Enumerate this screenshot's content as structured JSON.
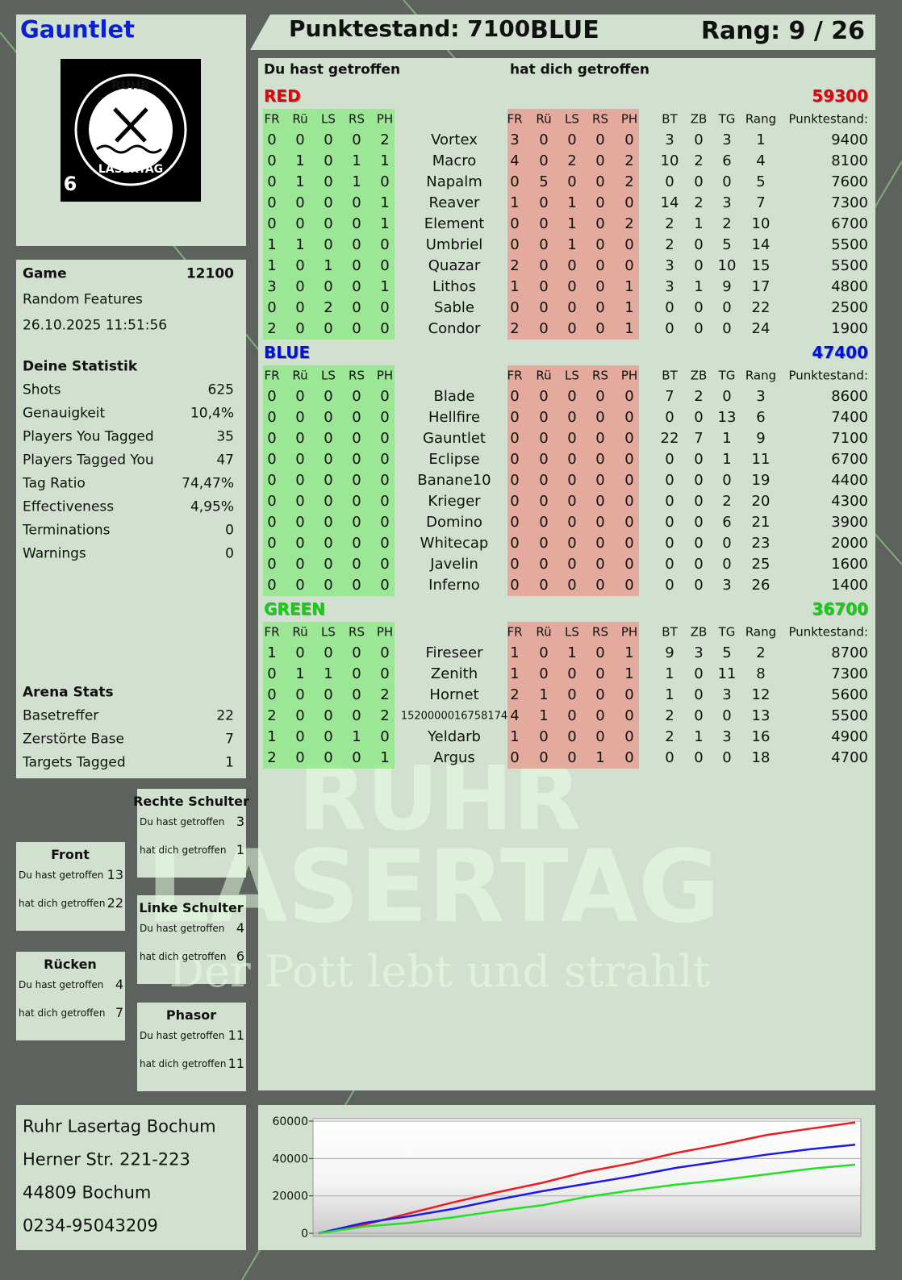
{
  "header": {
    "player": "Gauntlet",
    "score_label": "Punktestand: 7100",
    "team": "BLUE",
    "rank_label": "Rang: 9 / 26"
  },
  "logo": {
    "top": "RUHR",
    "bottom": "LASERTAG",
    "badge": "6"
  },
  "game": {
    "label": "Game",
    "id": 12100,
    "mode": "Random Features",
    "datetime": "26.10.2025 11:51:56"
  },
  "stats": {
    "title": "Deine Statistik",
    "rows": [
      [
        "Shots",
        625
      ],
      [
        "Genauigkeit",
        "10,4%"
      ],
      [
        "Players You Tagged",
        35
      ],
      [
        "Players Tagged You",
        47
      ],
      [
        "Tag Ratio",
        "74,47%"
      ],
      [
        "Effectiveness",
        "4,95%"
      ],
      [
        "Terminations",
        0
      ],
      [
        "Warnings",
        0
      ]
    ]
  },
  "arena": {
    "title": "Arena Stats",
    "rows": [
      [
        "Basetreffer",
        22
      ],
      [
        "Zerstörte Base",
        7
      ],
      [
        "Targets Tagged",
        1
      ]
    ]
  },
  "zones": {
    "hit_label": "Du hast getroffen",
    "got_label": "hat dich getroffen",
    "items": [
      {
        "name": "Rechte Schulter",
        "hit": 3,
        "got": 1
      },
      {
        "name": "Front",
        "hit": 13,
        "got": 22
      },
      {
        "name": "Linke Schulter",
        "hit": 4,
        "got": 6
      },
      {
        "name": "Rücken",
        "hit": 4,
        "got": 7
      },
      {
        "name": "Phasor",
        "hit": 11,
        "got": 11
      }
    ]
  },
  "table": {
    "hit_header": "Du hast getroffen",
    "got_header": "hat dich getroffen",
    "hit_columns": [
      "FR",
      "Rü",
      "LS",
      "RS",
      "PH"
    ],
    "stat_columns": [
      "BT",
      "ZB",
      "TG",
      "Rang",
      "Punktestand:"
    ],
    "teams": [
      {
        "name": "RED",
        "color": "#e4000c",
        "score": 59300,
        "players": [
          {
            "name": "Vortex",
            "hit": [
              0,
              0,
              0,
              0,
              2
            ],
            "got": [
              3,
              0,
              0,
              0,
              0
            ],
            "bt": 3,
            "zb": 0,
            "tg": 3,
            "rank": 1,
            "score": 9400
          },
          {
            "name": "Macro",
            "hit": [
              0,
              1,
              0,
              1,
              1
            ],
            "got": [
              4,
              0,
              2,
              0,
              2
            ],
            "bt": 10,
            "zb": 2,
            "tg": 6,
            "rank": 4,
            "score": 8100
          },
          {
            "name": "Napalm",
            "hit": [
              0,
              1,
              0,
              1,
              0
            ],
            "got": [
              0,
              5,
              0,
              0,
              2
            ],
            "bt": 0,
            "zb": 0,
            "tg": 0,
            "rank": 5,
            "score": 7600
          },
          {
            "name": "Reaver",
            "hit": [
              0,
              0,
              0,
              0,
              1
            ],
            "got": [
              1,
              0,
              1,
              0,
              0
            ],
            "bt": 14,
            "zb": 2,
            "tg": 3,
            "rank": 7,
            "score": 7300
          },
          {
            "name": "Element",
            "hit": [
              0,
              0,
              0,
              0,
              1
            ],
            "got": [
              0,
              0,
              1,
              0,
              2
            ],
            "bt": 2,
            "zb": 1,
            "tg": 2,
            "rank": 10,
            "score": 6700
          },
          {
            "name": "Umbriel",
            "hit": [
              1,
              1,
              0,
              0,
              0
            ],
            "got": [
              0,
              0,
              1,
              0,
              0
            ],
            "bt": 2,
            "zb": 0,
            "tg": 5,
            "rank": 14,
            "score": 5500
          },
          {
            "name": "Quazar",
            "hit": [
              1,
              0,
              1,
              0,
              0
            ],
            "got": [
              2,
              0,
              0,
              0,
              0
            ],
            "bt": 3,
            "zb": 0,
            "tg": 10,
            "rank": 15,
            "score": 5500
          },
          {
            "name": "Lithos",
            "hit": [
              3,
              0,
              0,
              0,
              1
            ],
            "got": [
              1,
              0,
              0,
              0,
              1
            ],
            "bt": 3,
            "zb": 1,
            "tg": 9,
            "rank": 17,
            "score": 4800
          },
          {
            "name": "Sable",
            "hit": [
              0,
              0,
              2,
              0,
              0
            ],
            "got": [
              0,
              0,
              0,
              0,
              1
            ],
            "bt": 0,
            "zb": 0,
            "tg": 0,
            "rank": 22,
            "score": 2500
          },
          {
            "name": "Condor",
            "hit": [
              2,
              0,
              0,
              0,
              0
            ],
            "got": [
              2,
              0,
              0,
              0,
              1
            ],
            "bt": 0,
            "zb": 0,
            "tg": 0,
            "rank": 24,
            "score": 1900
          }
        ]
      },
      {
        "name": "BLUE",
        "color": "#0010e0",
        "score": 47400,
        "players": [
          {
            "name": "Blade",
            "hit": [
              0,
              0,
              0,
              0,
              0
            ],
            "got": [
              0,
              0,
              0,
              0,
              0
            ],
            "bt": 7,
            "zb": 2,
            "tg": 0,
            "rank": 3,
            "score": 8600
          },
          {
            "name": "Hellfire",
            "hit": [
              0,
              0,
              0,
              0,
              0
            ],
            "got": [
              0,
              0,
              0,
              0,
              0
            ],
            "bt": 0,
            "zb": 0,
            "tg": 13,
            "rank": 6,
            "score": 7400
          },
          {
            "name": "Gauntlet",
            "hit": [
              0,
              0,
              0,
              0,
              0
            ],
            "got": [
              0,
              0,
              0,
              0,
              0
            ],
            "bt": 22,
            "zb": 7,
            "tg": 1,
            "rank": 9,
            "score": 7100
          },
          {
            "name": "Eclipse",
            "hit": [
              0,
              0,
              0,
              0,
              0
            ],
            "got": [
              0,
              0,
              0,
              0,
              0
            ],
            "bt": 0,
            "zb": 0,
            "tg": 1,
            "rank": 11,
            "score": 6700
          },
          {
            "name": "Banane10",
            "hit": [
              0,
              0,
              0,
              0,
              0
            ],
            "got": [
              0,
              0,
              0,
              0,
              0
            ],
            "bt": 0,
            "zb": 0,
            "tg": 0,
            "rank": 19,
            "score": 4400
          },
          {
            "name": "Krieger",
            "hit": [
              0,
              0,
              0,
              0,
              0
            ],
            "got": [
              0,
              0,
              0,
              0,
              0
            ],
            "bt": 0,
            "zb": 0,
            "tg": 2,
            "rank": 20,
            "score": 4300
          },
          {
            "name": "Domino",
            "hit": [
              0,
              0,
              0,
              0,
              0
            ],
            "got": [
              0,
              0,
              0,
              0,
              0
            ],
            "bt": 0,
            "zb": 0,
            "tg": 6,
            "rank": 21,
            "score": 3900
          },
          {
            "name": "Whitecap",
            "hit": [
              0,
              0,
              0,
              0,
              0
            ],
            "got": [
              0,
              0,
              0,
              0,
              0
            ],
            "bt": 0,
            "zb": 0,
            "tg": 0,
            "rank": 23,
            "score": 2000
          },
          {
            "name": "Javelin",
            "hit": [
              0,
              0,
              0,
              0,
              0
            ],
            "got": [
              0,
              0,
              0,
              0,
              0
            ],
            "bt": 0,
            "zb": 0,
            "tg": 0,
            "rank": 25,
            "score": 1600
          },
          {
            "name": "Inferno",
            "hit": [
              0,
              0,
              0,
              0,
              0
            ],
            "got": [
              0,
              0,
              0,
              0,
              0
            ],
            "bt": 0,
            "zb": 0,
            "tg": 3,
            "rank": 26,
            "score": 1400
          }
        ]
      },
      {
        "name": "GREEN",
        "color": "#10d010",
        "score": 36700,
        "players": [
          {
            "name": "Fireseer",
            "hit": [
              1,
              0,
              0,
              0,
              0
            ],
            "got": [
              1,
              0,
              1,
              0,
              1
            ],
            "bt": 9,
            "zb": 3,
            "tg": 5,
            "rank": 2,
            "score": 8700
          },
          {
            "name": "Zenith",
            "hit": [
              0,
              1,
              1,
              0,
              0
            ],
            "got": [
              1,
              0,
              0,
              0,
              1
            ],
            "bt": 1,
            "zb": 0,
            "tg": 11,
            "rank": 8,
            "score": 7300
          },
          {
            "name": "Hornet",
            "hit": [
              0,
              0,
              0,
              0,
              2
            ],
            "got": [
              2,
              1,
              0,
              0,
              0
            ],
            "bt": 1,
            "zb": 0,
            "tg": 3,
            "rank": 12,
            "score": 5600
          },
          {
            "name": "1520000016758174",
            "hit": [
              2,
              0,
              0,
              0,
              2
            ],
            "got": [
              4,
              1,
              0,
              0,
              0
            ],
            "bt": 2,
            "zb": 0,
            "tg": 0,
            "rank": 13,
            "score": 5500
          },
          {
            "name": "Yeldarb",
            "hit": [
              1,
              0,
              0,
              1,
              0
            ],
            "got": [
              1,
              0,
              0,
              0,
              0
            ],
            "bt": 2,
            "zb": 1,
            "tg": 3,
            "rank": 16,
            "score": 4900
          },
          {
            "name": "Argus",
            "hit": [
              2,
              0,
              0,
              0,
              1
            ],
            "got": [
              0,
              0,
              0,
              1,
              0
            ],
            "bt": 0,
            "zb": 0,
            "tg": 0,
            "rank": 18,
            "score": 4700
          }
        ]
      }
    ]
  },
  "address": {
    "lines": [
      "Ruhr Lasertag Bochum",
      "Herner Str. 221-223",
      "44809 Bochum",
      "0234-95043209"
    ]
  },
  "watermark": {
    "line1": "RUHR",
    "line2": "LASERTAG",
    "tagline": "Der Pott lebt und strahlt"
  },
  "chart_data": {
    "type": "line",
    "ylim": [
      -1700,
      61300
    ],
    "yticks": [
      0,
      20000,
      40000,
      60000
    ],
    "grid": true,
    "series": [
      {
        "color": "#ee1c1c",
        "values": [
          0,
          4500,
          10500,
          16500,
          22000,
          27000,
          33000,
          37500,
          43000,
          47500,
          52500,
          56000,
          59300
        ]
      },
      {
        "color": "#1a1aee",
        "values": [
          0,
          5500,
          9000,
          13000,
          18000,
          22500,
          26500,
          30500,
          35000,
          38500,
          42000,
          45000,
          47400
        ]
      },
      {
        "color": "#22e022",
        "values": [
          0,
          3500,
          5500,
          8500,
          12000,
          15000,
          19500,
          23000,
          26000,
          28500,
          31500,
          34500,
          36700
        ]
      }
    ]
  }
}
